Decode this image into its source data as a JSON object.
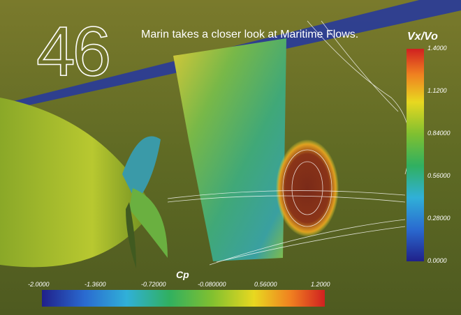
{
  "header": {
    "number": "46",
    "headline": "Marin takes a closer look at Maritime Flows."
  },
  "legend_right": {
    "title": "Vx/Vo",
    "labels": [
      "1.4000",
      "1.1200",
      "0.84000",
      "0.56000",
      "0.28000",
      "0.0000"
    ]
  },
  "legend_bottom": {
    "title": "Cp",
    "labels": [
      "-2.0000",
      "-1.3600",
      "-0.72000",
      "-0.080000",
      "0.56000",
      "1.2000"
    ]
  }
}
